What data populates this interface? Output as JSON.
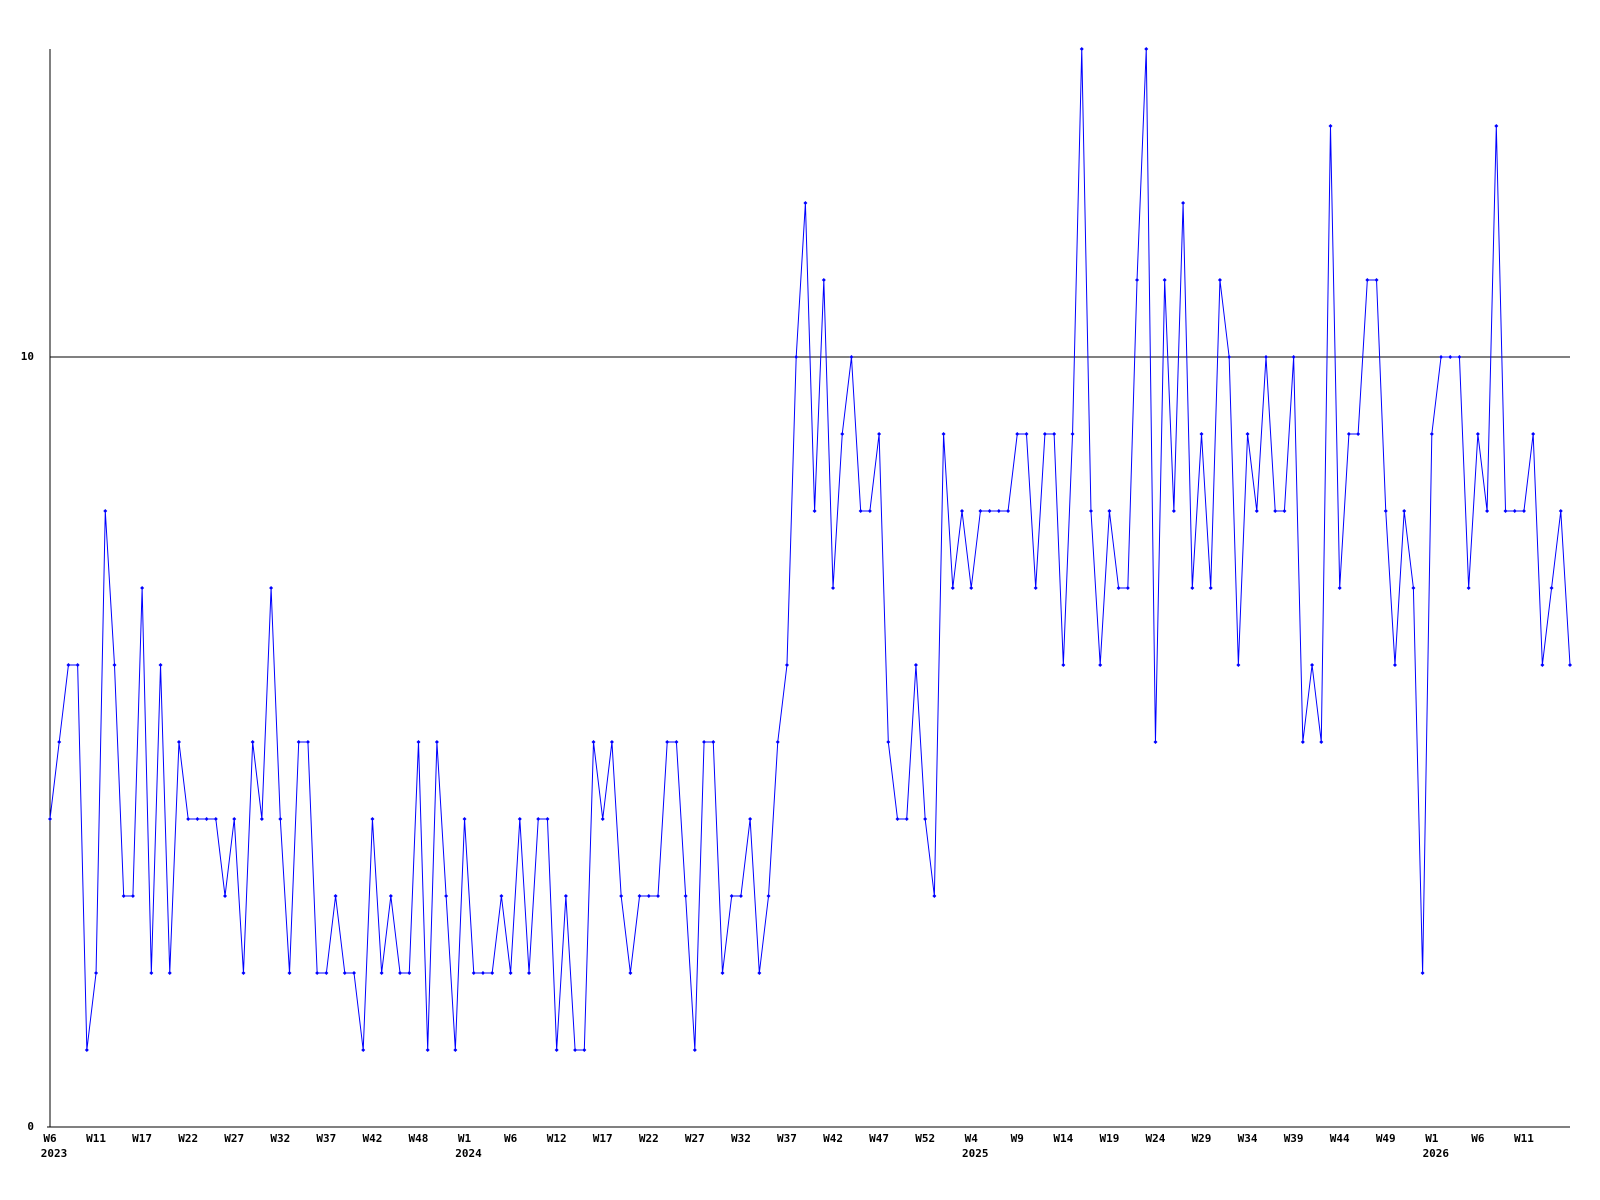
{
  "chart_data": {
    "type": "line",
    "categories": [
      "W6",
      null,
      null,
      null,
      null,
      "W11",
      null,
      null,
      null,
      null,
      "W17",
      null,
      null,
      null,
      null,
      "W22",
      null,
      null,
      null,
      null,
      "W27",
      null,
      null,
      null,
      null,
      "W32",
      null,
      null,
      null,
      null,
      "W37",
      null,
      null,
      null,
      null,
      "W42",
      null,
      null,
      null,
      null,
      "W48",
      null,
      null,
      null,
      null,
      "W1",
      null,
      null,
      null,
      null,
      "W6",
      null,
      null,
      null,
      null,
      "W12",
      null,
      null,
      null,
      null,
      "W17",
      null,
      null,
      null,
      null,
      "W22",
      null,
      null,
      null,
      null,
      "W27",
      null,
      null,
      null,
      null,
      "W32",
      null,
      null,
      null,
      null,
      "W37",
      null,
      null,
      null,
      null,
      "W42",
      null,
      null,
      null,
      null,
      "W47",
      null,
      null,
      null,
      null,
      "W52",
      null,
      null,
      null,
      null,
      "W4",
      null,
      null,
      null,
      null,
      "W9",
      null,
      null,
      null,
      null,
      "W14",
      null,
      null,
      null,
      null,
      "W19",
      null,
      null,
      null,
      null,
      "W24",
      null,
      null,
      null,
      null,
      "W29",
      null,
      null,
      null,
      null,
      "W34",
      null,
      null,
      null,
      null,
      "W39",
      null,
      null,
      null,
      null,
      "W44",
      null,
      null,
      null,
      null,
      "W49",
      null,
      null,
      null,
      null,
      "W1",
      null,
      null,
      null,
      null,
      "W6",
      null,
      null,
      null,
      null,
      "W11",
      null,
      null,
      null,
      null,
      null
    ],
    "years": [
      "2023",
      null,
      null,
      null,
      null,
      null,
      null,
      null,
      null,
      null,
      null,
      null,
      null,
      null,
      null,
      null,
      null,
      null,
      null,
      null,
      null,
      null,
      null,
      null,
      null,
      null,
      null,
      null,
      null,
      null,
      null,
      null,
      null,
      null,
      null,
      null,
      null,
      null,
      null,
      null,
      null,
      null,
      null,
      null,
      null,
      "2024",
      null,
      null,
      null,
      null,
      null,
      null,
      null,
      null,
      null,
      null,
      null,
      null,
      null,
      null,
      null,
      null,
      null,
      null,
      null,
      null,
      null,
      null,
      null,
      null,
      null,
      null,
      null,
      null,
      null,
      null,
      null,
      null,
      null,
      null,
      null,
      null,
      null,
      null,
      null,
      null,
      null,
      null,
      null,
      null,
      null,
      null,
      null,
      null,
      null,
      null,
      null,
      null,
      null,
      null,
      "2025",
      null,
      null,
      null,
      null,
      null,
      null,
      null,
      null,
      null,
      null,
      null,
      null,
      null,
      null,
      null,
      null,
      null,
      null,
      null,
      null,
      null,
      null,
      null,
      null,
      null,
      null,
      null,
      null,
      null,
      null,
      null,
      null,
      null,
      null,
      null,
      null,
      null,
      null,
      null,
      null,
      null,
      null,
      null,
      null,
      null,
      null,
      null,
      null,
      null,
      "2026",
      null,
      null,
      null,
      null,
      null,
      null,
      null,
      null,
      null,
      null,
      null,
      null,
      null,
      null,
      null
    ],
    "values": [
      4,
      5,
      6,
      6,
      1,
      2,
      8,
      6,
      3,
      3,
      7,
      2,
      6,
      2,
      5,
      4,
      4,
      4,
      4,
      3,
      4,
      2,
      5,
      4,
      7,
      4,
      2,
      5,
      5,
      2,
      2,
      3,
      2,
      2,
      1,
      4,
      2,
      3,
      2,
      2,
      5,
      1,
      5,
      3,
      1,
      4,
      2,
      2,
      2,
      3,
      2,
      4,
      2,
      4,
      4,
      1,
      3,
      1,
      1,
      5,
      4,
      5,
      3,
      2,
      3,
      3,
      3,
      5,
      5,
      3,
      1,
      5,
      5,
      2,
      3,
      3,
      4,
      2,
      3,
      5,
      6,
      10,
      12,
      8,
      11,
      7,
      9,
      10,
      8,
      8,
      9,
      5,
      4,
      4,
      6,
      4,
      3,
      9,
      7,
      8,
      7,
      8,
      8,
      8,
      8,
      9,
      9,
      7,
      9,
      9,
      6,
      9,
      14,
      8,
      6,
      8,
      7,
      7,
      11,
      14,
      5,
      11,
      8,
      12,
      7,
      9,
      7,
      11,
      10,
      6,
      9,
      8,
      10,
      8,
      8,
      10,
      5,
      6,
      5,
      13,
      7,
      9,
      9,
      11,
      11,
      8,
      6,
      8,
      7,
      2,
      9,
      10,
      10,
      10,
      7,
      9,
      8,
      13,
      8,
      8,
      8,
      9,
      6,
      7,
      8,
      6
    ],
    "color": "#0000ff",
    "ylim": [
      0,
      14
    ],
    "yticks": [
      0,
      10
    ],
    "grid": true
  }
}
